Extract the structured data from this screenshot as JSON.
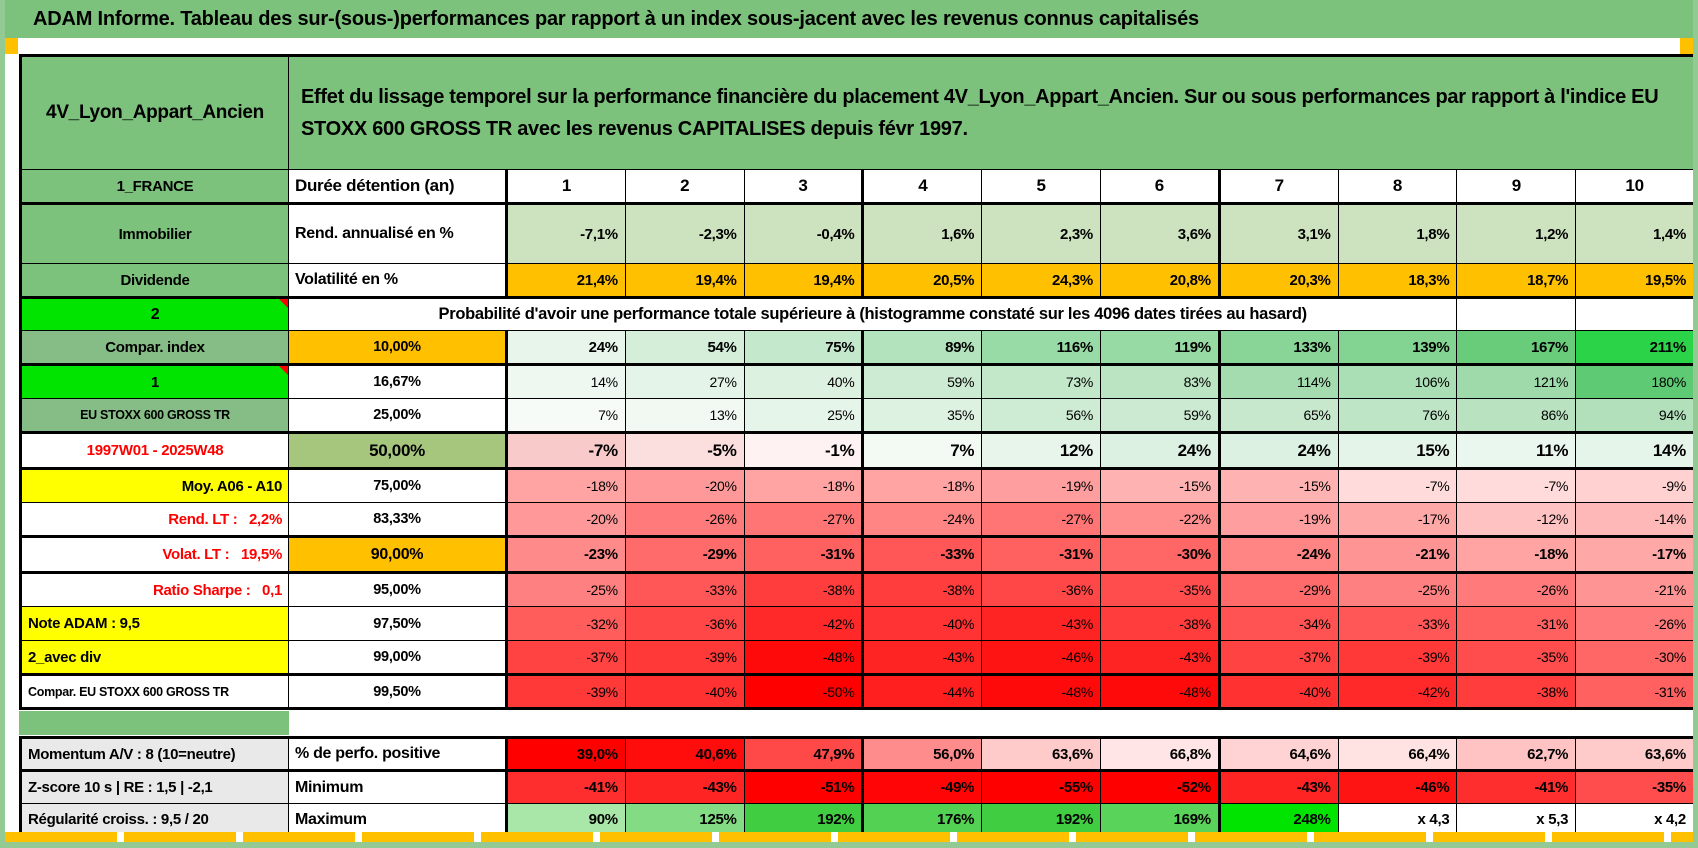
{
  "title": "ADAM Informe. Tableau des sur-(sous-)performances par rapport à un index sous-jacent avec les revenus connus capitalisés",
  "product": "4V_Lyon_Appart_Ancien",
  "description": "Effet du lissage temporel sur la performance financière du placement 4V_Lyon_Appart_Ancien. Sur ou sous performances par rapport à l'indice EU STOXX 600 GROSS TR avec les revenus CAPITALISES depuis févr 1997.",
  "country": "1_FRANCE",
  "col_header": "Durée détention (an)",
  "columns": [
    "1",
    "2",
    "3",
    "4",
    "5",
    "6",
    "7",
    "8",
    "9",
    "10"
  ],
  "colors": {
    "banner_green": "#7cc27c",
    "muted_green": "#86bd86",
    "bright_green": "#00e400",
    "orange": "#ffc000",
    "yellow": "#ffff00",
    "red_text": "#ff0000",
    "gray_label": "#e9e9e9",
    "median_header_green": "#a6c57d",
    "rend_cell_green": "#cde2bf"
  },
  "rows": [
    {
      "label": "Immobilier",
      "label_bg": "#7cc27c",
      "header": "Rend. annualisé en %",
      "values": [
        "-7,1%",
        "-2,3%",
        "-0,4%",
        "1,6%",
        "2,3%",
        "3,6%",
        "3,1%",
        "1,8%",
        "1,2%",
        "1,4%"
      ],
      "bg": "#cde2bf"
    },
    {
      "label": "Dividende",
      "label_bg": "#7cc27c",
      "header": "Volatilité en %",
      "values": [
        "21,4%",
        "19,4%",
        "19,4%",
        "20,5%",
        "24,3%",
        "20,8%",
        "20,3%",
        "18,3%",
        "18,7%",
        "19,5%"
      ],
      "bg": "#ffc000"
    }
  ],
  "proba": {
    "label": "2",
    "text": "Probabilité d'avoir une performance totale supérieure à (histogramme constaté sur les 4096 dates tirées au hasard)"
  },
  "percentiles": [
    {
      "label": "Compar. index",
      "label_bg": "#86bd86",
      "header": "10,00%",
      "header_bg": "#ffc000",
      "values": [
        "24%",
        "54%",
        "75%",
        "89%",
        "116%",
        "119%",
        "133%",
        "139%",
        "167%",
        "211%"
      ],
      "bgs": [
        "#e8f5ea",
        "#d4eed9",
        "#c3e8cb",
        "#b2e3bc",
        "#99dba6",
        "#97daa4",
        "#88d597",
        "#83d492",
        "#68cc7a",
        "#2ad348"
      ]
    },
    {
      "label": "1",
      "label_bg": "#00e400",
      "note": true,
      "header": "16,67%",
      "values": [
        "14%",
        "27%",
        "40%",
        "59%",
        "73%",
        "83%",
        "114%",
        "106%",
        "121%",
        "180%"
      ],
      "bgs": [
        "#eef8f0",
        "#e5f4e8",
        "#dcf1e0",
        "#cdebd3",
        "#c2e7c9",
        "#bbe4c3",
        "#a4dcb0",
        "#aadeb5",
        "#9fdaab",
        "#5fca74"
      ]
    },
    {
      "label": "EU STOXX 600 GROSS TR",
      "label_bg": "#86bd86",
      "label_small": true,
      "header": "25,00%",
      "values": [
        "7%",
        "13%",
        "25%",
        "35%",
        "56%",
        "59%",
        "65%",
        "76%",
        "86%",
        "94%"
      ],
      "bgs": [
        "#f6fbf7",
        "#f1f9f2",
        "#e6f5e9",
        "#def2e2",
        "#ceebd4",
        "#ccead2",
        "#c7e8cd",
        "#bfe5c7",
        "#b8e2c0",
        "#b2e0bb"
      ]
    },
    {
      "label": "1997W01 - 2025W48",
      "label_color": "#ff0000",
      "header": "50,00%",
      "header_bg": "#a6c57d",
      "values": [
        "-7%",
        "-5%",
        "-1%",
        "7%",
        "12%",
        "24%",
        "24%",
        "15%",
        "11%",
        "14%"
      ],
      "bgs": [
        "#f8caca",
        "#fbdede",
        "#fef2f2",
        "#f3faf4",
        "#e7f5eb",
        "#dcf1e2",
        "#dcf1e2",
        "#e5f4e9",
        "#eaf7ee",
        "#e6f5ea"
      ]
    },
    {
      "label": "Moy. A06 - A10",
      "label_bg": "#ffff00",
      "label_align": "right",
      "header": "75,00%",
      "values": [
        "-18%",
        "-20%",
        "-18%",
        "-18%",
        "-19%",
        "-15%",
        "-15%",
        "-7%",
        "-7%",
        "-9%"
      ],
      "bgs": [
        "#ffa3a3",
        "#ff9999",
        "#ffa3a3",
        "#ffa3a3",
        "#ff9e9e",
        "#ffb2b2",
        "#ffb2b2",
        "#ffdbdb",
        "#ffdbdb",
        "#ffd1d1"
      ]
    },
    {
      "label": "Rend. LT :   2,2%",
      "label_color": "#ff0000",
      "label_align": "right",
      "header": "83,33%",
      "values": [
        "-20%",
        "-26%",
        "-27%",
        "-24%",
        "-27%",
        "-22%",
        "-19%",
        "-17%",
        "-12%",
        "-14%"
      ],
      "bgs": [
        "#ff9999",
        "#ff7b7b",
        "#ff7575",
        "#ff8585",
        "#ff7575",
        "#ff8f8f",
        "#ff9e9e",
        "#ffa8a8",
        "#ffc2c2",
        "#ffb8b8"
      ]
    },
    {
      "label": "Volat. LT :   19,5%",
      "label_color": "#ff0000",
      "label_align": "right",
      "header": "90,00%",
      "header_bg": "#ffc000",
      "values": [
        "-23%",
        "-29%",
        "-31%",
        "-33%",
        "-31%",
        "-30%",
        "-24%",
        "-21%",
        "-18%",
        "-17%"
      ],
      "bgs": [
        "#ff8a8a",
        "#ff6b6b",
        "#ff6161",
        "#ff5757",
        "#ff6161",
        "#ff6666",
        "#ff8585",
        "#ff9494",
        "#ffa3a3",
        "#ffa8a8"
      ]
    },
    {
      "label": "Ratio Sharpe :   0,1",
      "label_color": "#ff0000",
      "label_align": "right",
      "header": "95,00%",
      "values": [
        "-25%",
        "-33%",
        "-38%",
        "-38%",
        "-36%",
        "-35%",
        "-29%",
        "-25%",
        "-26%",
        "-21%"
      ],
      "bgs": [
        "#ff8080",
        "#ff5757",
        "#ff3d3d",
        "#ff3d3d",
        "#ff4747",
        "#ff4d4d",
        "#ff6b6b",
        "#ff8080",
        "#ff7b7b",
        "#ff9494"
      ]
    },
    {
      "label": "Note ADAM : 9,5",
      "label_bg": "#ffff00",
      "label_align": "left",
      "header": "97,50%",
      "values": [
        "-32%",
        "-36%",
        "-42%",
        "-40%",
        "-43%",
        "-38%",
        "-34%",
        "-33%",
        "-31%",
        "-26%"
      ],
      "bgs": [
        "#ff5c5c",
        "#ff4747",
        "#ff2929",
        "#ff3333",
        "#ff2424",
        "#ff3d3d",
        "#ff5252",
        "#ff5757",
        "#ff6161",
        "#ff7b7b"
      ]
    },
    {
      "label": "2_avec div",
      "label_bg": "#ffff00",
      "label_align": "left",
      "header": "99,00%",
      "values": [
        "-37%",
        "-39%",
        "-48%",
        "-43%",
        "-46%",
        "-43%",
        "-37%",
        "-39%",
        "-35%",
        "-30%"
      ],
      "bgs": [
        "#ff4242",
        "#ff3838",
        "#ff0a0a",
        "#ff2424",
        "#ff1414",
        "#ff2424",
        "#ff4242",
        "#ff3838",
        "#ff4d4d",
        "#ff6666"
      ]
    },
    {
      "label": "Compar. EU STOXX 600 GROSS TR",
      "label_align": "left",
      "label_small": true,
      "header": "99,50%",
      "values": [
        "-39%",
        "-40%",
        "-50%",
        "-44%",
        "-48%",
        "-48%",
        "-40%",
        "-42%",
        "-38%",
        "-31%"
      ],
      "bgs": [
        "#ff3838",
        "#ff3131",
        "#ff0000",
        "#ff1f1f",
        "#ff0a0a",
        "#ff0a0a",
        "#ff3131",
        "#ff2929",
        "#ff3d3d",
        "#ff6161"
      ]
    }
  ],
  "bottom": [
    {
      "label": "Momentum A/V : 8 (10=neutre)",
      "label_bg": "#e9e9e9",
      "label_align": "left",
      "header": "% de perfo. positive",
      "values": [
        "39,0%",
        "40,6%",
        "47,9%",
        "56,0%",
        "63,6%",
        "66,8%",
        "64,6%",
        "66,4%",
        "62,7%",
        "63,6%"
      ],
      "bgs": [
        "#ff0000",
        "#ff0d0d",
        "#ff4949",
        "#ff8c8c",
        "#ffcaca",
        "#ffe5e5",
        "#ffd3d3",
        "#ffe2e2",
        "#ffc3c3",
        "#ffcaca"
      ]
    },
    {
      "label": "Z-score 10 s | RE : 1,5 | -2,1",
      "label_bg": "#e9e9e9",
      "label_align": "left",
      "header": "Minimum",
      "values": [
        "-41%",
        "-43%",
        "-51%",
        "-49%",
        "-55%",
        "-52%",
        "-43%",
        "-46%",
        "-41%",
        "-35%"
      ],
      "bgs": [
        "#ff2e2e",
        "#ff2424",
        "#ff0000",
        "#ff0505",
        "#ff0000",
        "#ff0000",
        "#ff2424",
        "#ff1414",
        "#ff2e2e",
        "#ff4d4d"
      ]
    },
    {
      "label": "Régularité croiss. : 9,5 / 20",
      "label_bg": "#e9e9e9",
      "label_align": "left",
      "header": "Maximum",
      "values": [
        "90%",
        "125%",
        "192%",
        "176%",
        "192%",
        "169%",
        "248%",
        "x 4,3",
        "x 5,3",
        "x 4,2"
      ],
      "bgs": [
        "#a8e7a8",
        "#83db83",
        "#41cd41",
        "#52d152",
        "#41cd41",
        "#5ad35a",
        "#00e400",
        "#ffffff",
        "#ffffff",
        "#ffffff"
      ]
    }
  ]
}
